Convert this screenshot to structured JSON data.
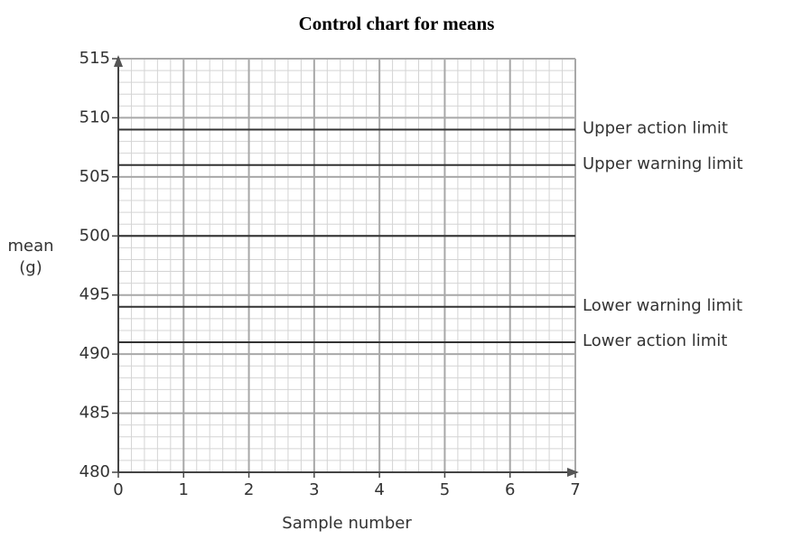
{
  "chart_data": {
    "type": "control",
    "title": "Control chart for means",
    "xlabel": "Sample number",
    "ylabel": [
      "mean",
      "(g)"
    ],
    "xlim": [
      0,
      7
    ],
    "xticks": [
      0,
      1,
      2,
      3,
      4,
      5,
      6,
      7
    ],
    "ylim": [
      480,
      515
    ],
    "yticks": [
      480,
      485,
      490,
      495,
      500,
      505,
      510,
      515
    ],
    "grid": true,
    "lines": [
      {
        "value": 509,
        "label": "Upper action limit"
      },
      {
        "value": 506,
        "label": "Upper warning limit"
      },
      {
        "value": 500
      },
      {
        "value": 494,
        "label": "Lower warning limit"
      },
      {
        "value": 491,
        "label": "Lower action limit"
      }
    ],
    "line_color": "#333333"
  }
}
